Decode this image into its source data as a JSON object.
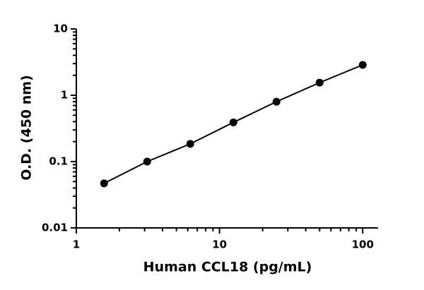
{
  "chart_data": {
    "type": "scatter-line",
    "x_label": "Human CCL18 (pg/mL)",
    "y_label": "O.D. (450 nm)",
    "x": [
      1.5625,
      3.125,
      6.25,
      12.5,
      25,
      50,
      100
    ],
    "series": [
      {
        "color": "#000000",
        "values": [
          0.047,
          0.1,
          0.185,
          0.39,
          0.8,
          1.55,
          2.87
        ]
      }
    ],
    "xscale": "log",
    "yscale": "log",
    "xlim": [
      1,
      128
    ],
    "ylim": [
      0.01,
      10
    ],
    "xticks": [
      1,
      10,
      100
    ],
    "yticks": [
      0.01,
      0.1,
      1,
      10
    ],
    "xminorticks": [
      2,
      3,
      4,
      5,
      6,
      7,
      8,
      9,
      20,
      30,
      40,
      50,
      60,
      70,
      80,
      90
    ],
    "yminorticks": [
      0.02,
      0.03,
      0.04,
      0.05,
      0.06,
      0.07,
      0.08,
      0.09,
      0.2,
      0.3,
      0.4,
      0.5,
      0.6,
      0.7,
      0.8,
      0.9,
      2,
      3,
      4,
      5,
      6,
      7,
      8,
      9
    ]
  }
}
